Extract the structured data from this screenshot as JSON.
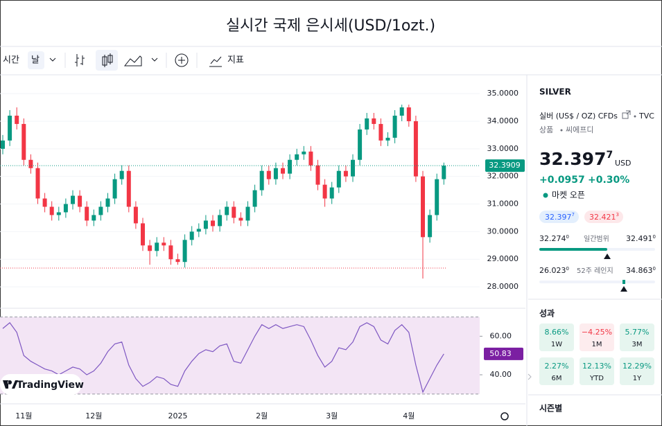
{
  "header": {
    "title": "실시간 국제 은시세(USD/1ozt.)"
  },
  "toolbar": {
    "interval": "시간",
    "period": "날",
    "indicators": "지표"
  },
  "chart_data": {
    "type": "candlestick",
    "watermark": "TradingView",
    "categories": [
      null,
      null,
      null,
      "11월",
      null,
      null,
      null,
      null,
      null,
      null,
      null,
      null,
      null,
      "12월",
      null,
      null,
      null,
      null,
      null,
      null,
      null,
      null,
      null,
      null,
      null,
      "2025",
      null,
      null,
      null,
      null,
      null,
      null,
      null,
      null,
      null,
      null,
      null,
      "2월",
      null,
      null,
      null,
      null,
      null,
      null,
      null,
      null,
      null,
      "3월",
      null,
      null,
      null,
      null,
      null,
      null,
      null,
      null,
      null,
      null,
      "4월",
      null,
      null,
      null,
      null,
      null
    ],
    "open": [
      33.0,
      33.3,
      34.2,
      33.9,
      32.6,
      32.3,
      31.2,
      30.9,
      30.6,
      30.7,
      31.0,
      31.3,
      30.9,
      30.4,
      30.6,
      30.9,
      31.2,
      31.9,
      32.2,
      30.9,
      30.3,
      29.5,
      29.3,
      29.6,
      29.5,
      29.0,
      28.9,
      29.7,
      30.0,
      30.1,
      30.4,
      30.2,
      30.6,
      30.9,
      30.5,
      30.4,
      30.9,
      31.5,
      32.2,
      31.9,
      32.3,
      32.1,
      32.6,
      32.8,
      32.9,
      32.4,
      31.7,
      31.2,
      31.6,
      32.2,
      32.0,
      32.6,
      33.7,
      34.1,
      33.9,
      33.3,
      33.4,
      34.2,
      34.5,
      34.0,
      32.0,
      29.8,
      30.6,
      31.9
    ],
    "high": [
      33.5,
      34.4,
      34.5,
      34.1,
      32.8,
      32.5,
      31.4,
      31.1,
      30.9,
      31.2,
      31.5,
      31.5,
      31.1,
      30.8,
      31.1,
      31.4,
      32.1,
      32.4,
      32.4,
      31.1,
      30.5,
      29.7,
      29.8,
      29.8,
      29.7,
      29.2,
      29.9,
      30.2,
      30.3,
      30.6,
      30.6,
      30.8,
      31.1,
      31.1,
      30.7,
      31.1,
      31.7,
      32.4,
      32.4,
      32.5,
      32.5,
      32.8,
      33.0,
      33.1,
      33.1,
      32.6,
      31.9,
      31.8,
      32.4,
      32.4,
      32.8,
      33.9,
      34.3,
      34.3,
      34.1,
      33.6,
      34.4,
      34.6,
      34.6,
      34.2,
      32.2,
      30.8,
      32.1,
      32.5
    ],
    "low": [
      32.8,
      33.1,
      33.7,
      32.4,
      32.1,
      31.0,
      30.7,
      30.4,
      30.4,
      30.5,
      30.8,
      30.7,
      30.2,
      30.2,
      30.4,
      30.7,
      31.0,
      31.7,
      30.7,
      30.1,
      29.3,
      28.8,
      29.1,
      29.3,
      28.8,
      28.8,
      28.7,
      29.5,
      29.8,
      29.9,
      30.0,
      30.0,
      30.4,
      30.3,
      30.2,
      30.2,
      30.7,
      31.3,
      31.7,
      31.7,
      31.9,
      31.9,
      32.4,
      32.6,
      32.2,
      31.5,
      30.9,
      31.0,
      31.4,
      31.8,
      31.8,
      32.4,
      33.5,
      33.7,
      33.1,
      33.1,
      33.2,
      34.0,
      33.8,
      31.8,
      28.3,
      29.6,
      30.4,
      31.7
    ],
    "close": [
      33.3,
      34.2,
      33.9,
      32.6,
      32.3,
      31.2,
      30.9,
      30.6,
      30.7,
      31.0,
      31.3,
      30.9,
      30.4,
      30.6,
      30.9,
      31.2,
      31.9,
      32.2,
      30.9,
      30.3,
      29.5,
      29.3,
      29.6,
      29.5,
      29.0,
      28.9,
      29.7,
      30.0,
      30.1,
      30.4,
      30.2,
      30.6,
      30.9,
      30.5,
      30.4,
      30.9,
      31.5,
      32.2,
      31.9,
      32.3,
      32.1,
      32.6,
      32.8,
      32.9,
      32.4,
      31.7,
      31.2,
      31.6,
      32.2,
      32.0,
      32.6,
      33.7,
      34.1,
      33.9,
      33.3,
      33.4,
      34.2,
      34.5,
      34.0,
      32.0,
      29.8,
      30.6,
      31.9,
      32.3909
    ],
    "up_color": "#089981",
    "down_color": "#f23645",
    "ylim": [
      27.35,
      35.68
    ],
    "yticks": [
      {
        "value": 28,
        "label": "28.0000"
      },
      {
        "value": 29,
        "label": "29.0000"
      },
      {
        "value": 30,
        "label": "30.0000"
      },
      {
        "value": 31,
        "label": "31.0000"
      },
      {
        "value": 32,
        "label": "32.0000"
      },
      {
        "value": 33,
        "label": "33.0000"
      },
      {
        "value": 34,
        "label": "34.0000"
      },
      {
        "value": 35,
        "label": "35.0000"
      }
    ],
    "reference_line": 28.68,
    "rsi": {
      "values": [
        64,
        67,
        62,
        50,
        47,
        45,
        43,
        42,
        40,
        42,
        44,
        43,
        40,
        42,
        46,
        52,
        56,
        57,
        45,
        38,
        34,
        36,
        39,
        38,
        35,
        34,
        42,
        47,
        51,
        53,
        52,
        55,
        56,
        47,
        46,
        53,
        60,
        66,
        64,
        66,
        64,
        65,
        66,
        65,
        58,
        50,
        44,
        47,
        54,
        53,
        57,
        65,
        67,
        65,
        58,
        56,
        63,
        66,
        62,
        45,
        31,
        38,
        45,
        50.83
      ],
      "color": "#7e57c2",
      "band": [
        30,
        70
      ],
      "band_color": "#f3e5f5",
      "ylim": [
        26,
        72
      ],
      "yticks": [
        {
          "value": 60,
          "label": "60.00"
        },
        {
          "value": 40,
          "label": "40.00"
        }
      ]
    }
  },
  "sidebar": {
    "symbol": "SILVER",
    "description": "실버 (US$ / OZ) CFDs",
    "exchange": "TVC",
    "category": "상품",
    "subcategory": "씨에프디",
    "price": "32.397",
    "price_sup": "7",
    "currency": "USD",
    "change": "+0.0957",
    "change_pct": "+0.30%",
    "status": "마켓 오픈",
    "bid": "32.397",
    "bid_sup": "7",
    "ask": "32.421",
    "ask_sup": "3",
    "day_low": "32.274",
    "day_low_sup": "0",
    "day_label": "일간범위",
    "day_high": "32.491",
    "day_high_sup": "0",
    "year_low": "26.023",
    "year_low_sup": "0",
    "year_label": "52주 레인지",
    "year_high": "34.863",
    "year_high_sup": "0",
    "performance_title": "성과",
    "performance": [
      {
        "value": "8.66%",
        "period": "1W",
        "tone": "up"
      },
      {
        "value": "−4.25%",
        "period": "1M",
        "tone": "down"
      },
      {
        "value": "5.77%",
        "period": "3M",
        "tone": "up"
      },
      {
        "value": "2.27%",
        "period": "6M",
        "tone": "up"
      },
      {
        "value": "12.13%",
        "period": "YTD",
        "tone": "up"
      },
      {
        "value": "12.29%",
        "period": "1Y",
        "tone": "up"
      }
    ],
    "seasonal_title": "시즌별"
  }
}
